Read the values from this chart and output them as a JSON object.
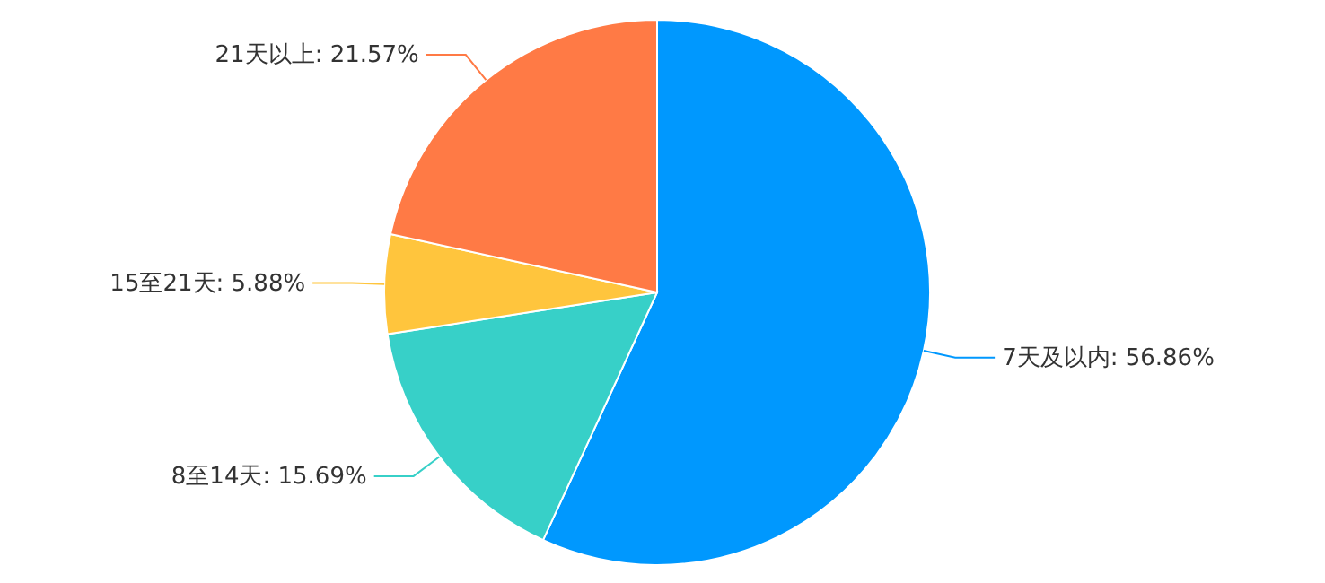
{
  "chart_data": {
    "type": "pie",
    "categories": [
      "7天及以内",
      "8至14天",
      "15至21天",
      "21天以上"
    ],
    "values": [
      56.86,
      15.69,
      5.88,
      21.57
    ],
    "value_labels": [
      ": 56.86%",
      ": 15.69%",
      ": 5.88%",
      ": 21.57%"
    ],
    "colors": [
      "#0098fe",
      "#37d0c8",
      "#ffc53d",
      "#ff7a45"
    ]
  }
}
